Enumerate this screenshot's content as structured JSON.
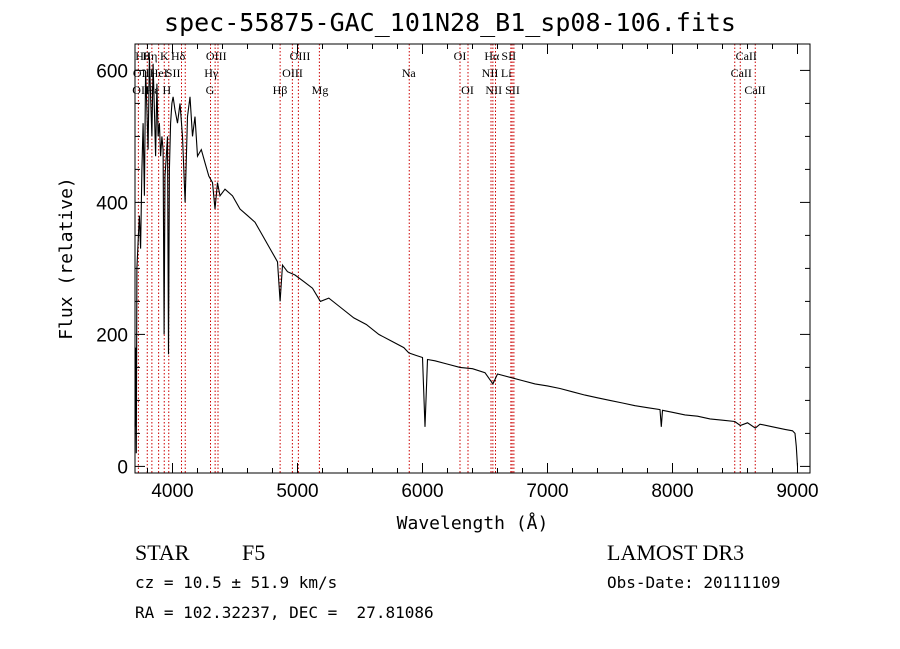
{
  "chart_data": {
    "type": "line",
    "title": "spec-55875-GAC_101N28_B1_sp08-106.fits",
    "xlabel": "Wavelength (Å)",
    "ylabel": "Flux (relative)",
    "xlim": [
      3700,
      9100
    ],
    "ylim": [
      -10,
      640
    ],
    "xticks": [
      4000,
      5000,
      6000,
      7000,
      8000,
      9000
    ],
    "yticks": [
      0,
      200,
      400,
      600
    ],
    "series": [
      {
        "name": "spectrum",
        "x": [
          3700,
          3705,
          3710,
          3715,
          3725,
          3735,
          3745,
          3755,
          3765,
          3775,
          3785,
          3795,
          3805,
          3815,
          3825,
          3835,
          3845,
          3855,
          3865,
          3875,
          3885,
          3895,
          3905,
          3915,
          3925,
          3933,
          3940,
          3950,
          3960,
          3968,
          3975,
          3985,
          3995,
          4005,
          4020,
          4040,
          4060,
          4080,
          4101,
          4120,
          4140,
          4160,
          4180,
          4200,
          4230,
          4260,
          4290,
          4320,
          4340,
          4360,
          4380,
          4420,
          4480,
          4540,
          4600,
          4660,
          4720,
          4780,
          4840,
          4861,
          4880,
          4920,
          4980,
          5050,
          5120,
          5183,
          5250,
          5350,
          5450,
          5550,
          5650,
          5750,
          5850,
          5890,
          5950,
          6000,
          6020,
          6040,
          6100,
          6200,
          6300,
          6400,
          6500,
          6563,
          6600,
          6700,
          6800,
          6900,
          7000,
          7100,
          7200,
          7300,
          7400,
          7500,
          7600,
          7700,
          7800,
          7900,
          7910,
          7920,
          8000,
          8100,
          8200,
          8300,
          8400,
          8498,
          8542,
          8600,
          8662,
          8700,
          8800,
          8900,
          8960,
          8980,
          8990,
          9000
        ],
        "y": [
          60,
          180,
          20,
          300,
          340,
          380,
          330,
          450,
          520,
          410,
          600,
          540,
          480,
          620,
          560,
          500,
          610,
          540,
          470,
          580,
          500,
          520,
          470,
          500,
          480,
          200,
          440,
          470,
          500,
          170,
          450,
          520,
          550,
          560,
          540,
          520,
          550,
          500,
          400,
          530,
          560,
          500,
          530,
          470,
          480,
          460,
          440,
          430,
          390,
          430,
          410,
          420,
          410,
          390,
          380,
          370,
          350,
          330,
          310,
          250,
          305,
          295,
          290,
          280,
          270,
          250,
          255,
          240,
          225,
          215,
          200,
          190,
          180,
          172,
          168,
          165,
          60,
          162,
          160,
          155,
          150,
          148,
          142,
          125,
          140,
          135,
          130,
          125,
          122,
          118,
          113,
          108,
          104,
          100,
          96,
          92,
          89,
          86,
          60,
          85,
          82,
          78,
          76,
          72,
          70,
          68,
          62,
          66,
          58,
          64,
          60,
          56,
          54,
          50,
          30,
          0
        ]
      }
    ],
    "reference_lines": [
      {
        "wave": 3727,
        "labels": [
          "OII",
          "OII"
        ]
      },
      {
        "wave": 3798,
        "labels": [
          "Hθ"
        ]
      },
      {
        "wave": 3835,
        "labels": [
          "Hη"
        ]
      },
      {
        "wave": 3889,
        "labels": [
          "Hζ",
          "HeI"
        ]
      },
      {
        "wave": 3934,
        "labels": [
          "K"
        ]
      },
      {
        "wave": 3970,
        "labels": [
          "H",
          "Hε"
        ]
      },
      {
        "wave": 4072,
        "labels": [
          "SII"
        ]
      },
      {
        "wave": 4102,
        "labels": [
          "Hδ"
        ]
      },
      {
        "wave": 4304,
        "labels": [
          "G"
        ]
      },
      {
        "wave": 4341,
        "labels": [
          "Hγ"
        ]
      },
      {
        "wave": 4364,
        "labels": [
          "OIII"
        ]
      },
      {
        "wave": 4861,
        "labels": [
          "Hβ"
        ]
      },
      {
        "wave": 4959,
        "labels": [
          "OIII"
        ]
      },
      {
        "wave": 5007,
        "labels": [
          "OIII"
        ]
      },
      {
        "wave": 5175,
        "labels": [
          "Mg"
        ]
      },
      {
        "wave": 5894,
        "labels": [
          "Na"
        ]
      },
      {
        "wave": 6300,
        "labels": [
          "OI"
        ]
      },
      {
        "wave": 6364,
        "labels": [
          "OI"
        ]
      },
      {
        "wave": 6548,
        "labels": [
          "NII"
        ]
      },
      {
        "wave": 6563,
        "labels": [
          "Hα"
        ]
      },
      {
        "wave": 6584,
        "labels": [
          "NII"
        ]
      },
      {
        "wave": 6707,
        "labels": [
          "Li"
        ]
      },
      {
        "wave": 6717,
        "labels": [
          "SII",
          "SII"
        ]
      },
      {
        "wave": 6731,
        "labels": [
          "SII"
        ]
      },
      {
        "wave": 8498,
        "labels": [
          "CaII"
        ]
      },
      {
        "wave": 8542,
        "labels": [
          "CaII"
        ]
      },
      {
        "wave": 8662,
        "labels": [
          "CaII"
        ]
      }
    ],
    "line_labels": [
      {
        "text": "Hθ",
        "row": 0,
        "wave": 3760
      },
      {
        "text": "Hη",
        "row": 0,
        "wave": 3820
      },
      {
        "text": "K",
        "row": 0,
        "wave": 3935
      },
      {
        "text": "Hδ",
        "row": 0,
        "wave": 4045
      },
      {
        "text": "OIII",
        "row": 0,
        "wave": 4350
      },
      {
        "text": "OIII",
        "row": 0,
        "wave": 5020
      },
      {
        "text": "OI",
        "row": 0,
        "wave": 6300
      },
      {
        "text": "Hα",
        "row": 0,
        "wave": 6555
      },
      {
        "text": "SII",
        "row": 0,
        "wave": 6690
      },
      {
        "text": "CaII",
        "row": 0,
        "wave": 8590
      },
      {
        "text": "OII",
        "row": 1,
        "wave": 3750
      },
      {
        "text": "HeI",
        "row": 1,
        "wave": 3890
      },
      {
        "text": "SII",
        "row": 1,
        "wave": 4005
      },
      {
        "text": "Hγ",
        "row": 1,
        "wave": 4310
      },
      {
        "text": "OIII",
        "row": 1,
        "wave": 4960
      },
      {
        "text": "Na",
        "row": 1,
        "wave": 5890
      },
      {
        "text": "NII",
        "row": 1,
        "wave": 6540
      },
      {
        "text": "Li",
        "row": 1,
        "wave": 6670
      },
      {
        "text": "CaII",
        "row": 1,
        "wave": 8550
      },
      {
        "text": "OII",
        "row": 2,
        "wave": 3745
      },
      {
        "text": "Hε",
        "row": 2,
        "wave": 3840
      },
      {
        "text": "H",
        "row": 2,
        "wave": 3955
      },
      {
        "text": "G",
        "row": 2,
        "wave": 4300
      },
      {
        "text": "Hβ",
        "row": 2,
        "wave": 4860
      },
      {
        "text": "Mg",
        "row": 2,
        "wave": 5180
      },
      {
        "text": "OI",
        "row": 2,
        "wave": 6360
      },
      {
        "text": "NII",
        "row": 2,
        "wave": 6570
      },
      {
        "text": "SII",
        "row": 2,
        "wave": 6720
      },
      {
        "text": "CaII",
        "row": 2,
        "wave": 8660
      }
    ],
    "line_color": "#cc0000"
  },
  "info": {
    "class": "STAR",
    "subclass": "F5",
    "survey": "LAMOST DR3",
    "cz": "cz = 10.5 ± 51.9 km/s",
    "obs_date": "Obs-Date: 20111109",
    "coords": "RA = 102.32237, DEC =  27.81086"
  }
}
